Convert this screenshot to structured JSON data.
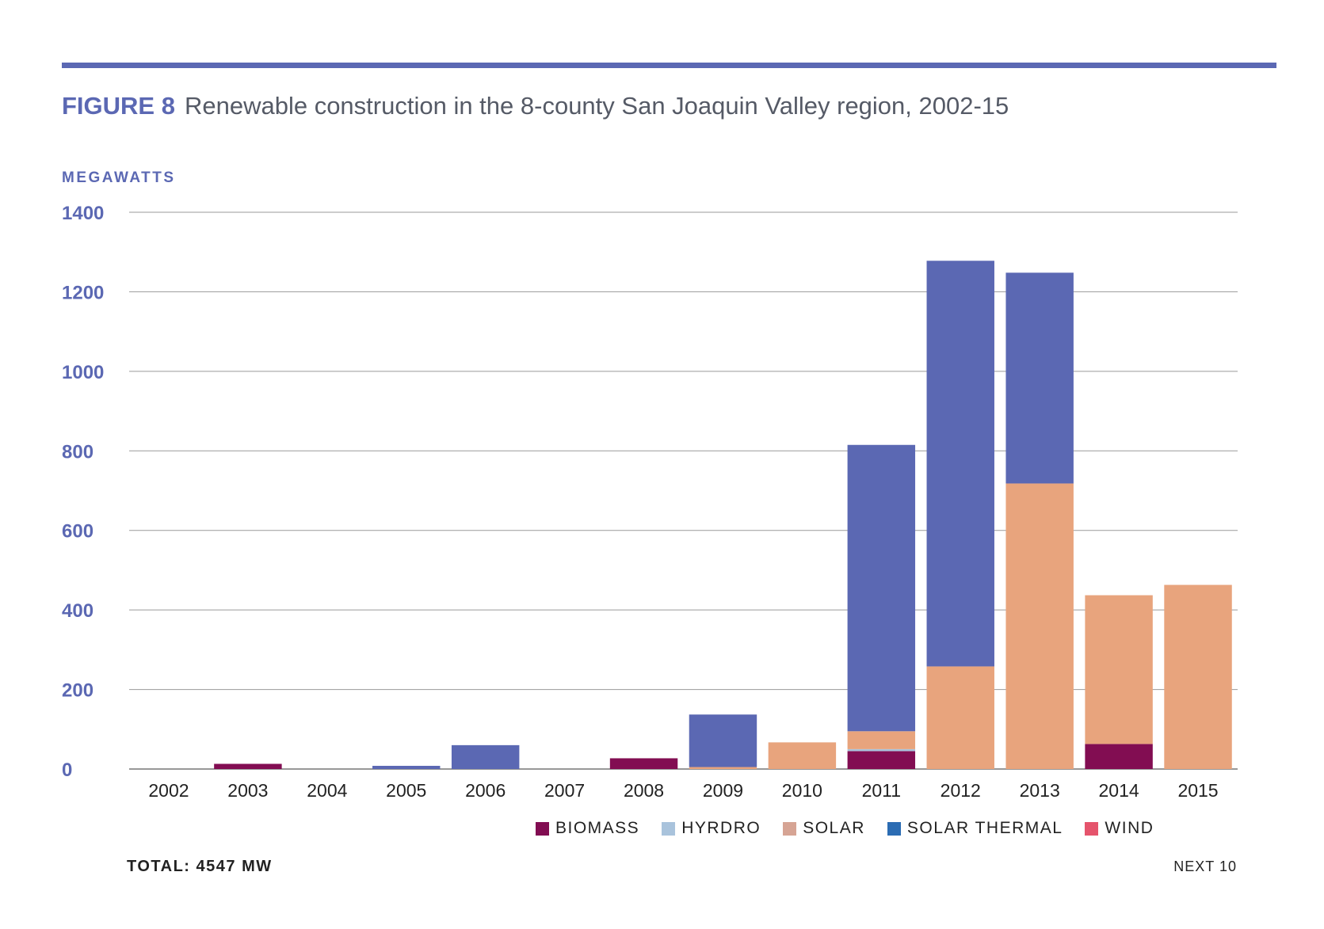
{
  "header": {
    "figure_label": "FIGURE 8",
    "title": "Renewable construction in the 8-county San Joaquin Valley region, 2002-15"
  },
  "footer": {
    "total": "TOTAL: 4547 MW",
    "source": "NEXT 10"
  },
  "colors": {
    "accent": "#5b68b3",
    "biomass": "#820d52",
    "hydro": "#a9c3dc",
    "solar": "#e8a47d",
    "solar_thermal": "#2b6cb3",
    "wind": "#e5546c",
    "stack_top": "#5b68b3",
    "grid": "#9a9a9a"
  },
  "chart_data": {
    "type": "bar",
    "stacked": true,
    "title": "Renewable construction in the 8-county San Joaquin Valley region, 2002-15",
    "ylabel": "MEGAWATTS",
    "xlabel": "",
    "ylim": [
      0,
      1400
    ],
    "yticks": [
      0,
      200,
      400,
      600,
      800,
      1000,
      1200,
      1400
    ],
    "grid": true,
    "legend_position": "bottom-right",
    "categories": [
      "2002",
      "2003",
      "2004",
      "2005",
      "2006",
      "2007",
      "2008",
      "2009",
      "2010",
      "2011",
      "2012",
      "2013",
      "2014",
      "2015"
    ],
    "legend": [
      {
        "name": "BIOMASS",
        "color": "#820d52"
      },
      {
        "name": "HYRDRO",
        "color": "#a9c3dc"
      },
      {
        "name": "SOLAR",
        "color": "#d6a494"
      },
      {
        "name": "SOLAR THERMAL",
        "color": "#2b6cb3"
      },
      {
        "name": "WIND",
        "color": "#e5546c"
      }
    ],
    "series": [
      {
        "key": "biomass",
        "color": "#820d52",
        "values": [
          0,
          13,
          0,
          0,
          0,
          0,
          27,
          0,
          0,
          45,
          0,
          0,
          63,
          0
        ]
      },
      {
        "key": "hydro",
        "color": "#a9c3dc",
        "values": [
          0,
          0,
          0,
          0,
          0,
          0,
          0,
          0,
          0,
          5,
          0,
          0,
          0,
          0
        ]
      },
      {
        "key": "solar",
        "color": "#e8a47d",
        "values": [
          0,
          0,
          0,
          0,
          0,
          0,
          0,
          5,
          67,
          45,
          258,
          718,
          374,
          463
        ]
      },
      {
        "key": "stack_top",
        "color": "#5b68b3",
        "values": [
          0,
          0,
          0,
          8,
          60,
          0,
          0,
          132,
          0,
          720,
          1020,
          530,
          0,
          0
        ]
      }
    ]
  }
}
